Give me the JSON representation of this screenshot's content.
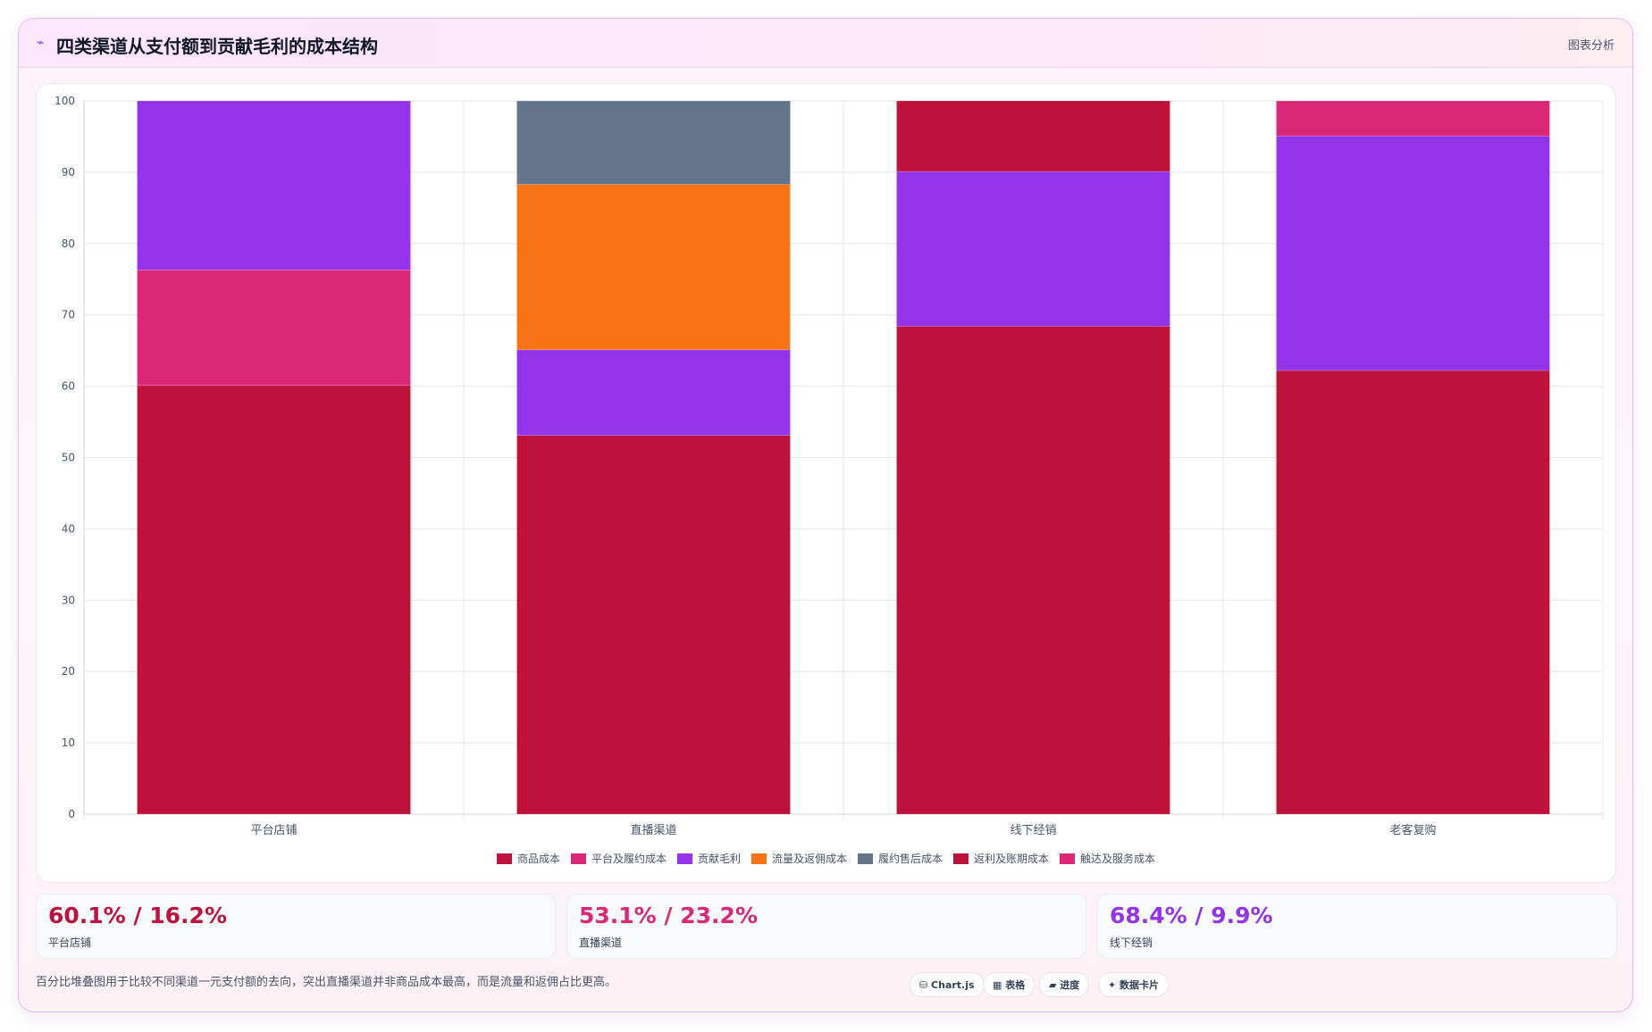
{
  "header": {
    "icon": "trend-icon",
    "title": "四类渠道从支付额到贡献毛利的成本结构",
    "tag": "图表分析"
  },
  "chart_data": {
    "type": "bar",
    "stacked": true,
    "categories": [
      "平台店铺",
      "直播渠道",
      "线下经销",
      "老客复购"
    ],
    "ylim": [
      0,
      100
    ],
    "yticks": [
      0,
      10,
      20,
      30,
      40,
      50,
      60,
      70,
      80,
      90,
      100
    ],
    "grid": true,
    "legend_position": "bottom",
    "series": [
      {
        "name": "商品成本",
        "color": "#be123c",
        "values": [
          60.1,
          53.1,
          68.4,
          62.2
        ]
      },
      {
        "name": "平台及履约成本",
        "color": "#db2777",
        "values": [
          16.2,
          null,
          null,
          null
        ]
      },
      {
        "name": "贡献毛利",
        "color": "#9333ea",
        "values": [
          23.7,
          12.0,
          21.7,
          32.9
        ]
      },
      {
        "name": "流量及返佣成本",
        "color": "#f97316",
        "values": [
          null,
          23.2,
          null,
          null
        ]
      },
      {
        "name": "履约售后成本",
        "color": "#64748b",
        "values": [
          null,
          11.7,
          null,
          null
        ]
      },
      {
        "name": "返利及账期成本",
        "color": "#be123c",
        "values": [
          null,
          null,
          9.9,
          null
        ]
      },
      {
        "name": "触达及服务成本",
        "color": "#db2777",
        "values": [
          null,
          null,
          null,
          4.9
        ]
      }
    ]
  },
  "stats": [
    {
      "value": "60.1% / 16.2%",
      "label": "平台店铺",
      "color": "#be123c"
    },
    {
      "value": "53.1% / 23.2%",
      "label": "直播渠道",
      "color": "#db2777"
    },
    {
      "value": "68.4% / 9.9%",
      "label": "线下经销",
      "color": "#9333ea"
    }
  ],
  "footer": {
    "note": "百分比堆叠图用于比较不同渠道一元支付额的去向，突出直播渠道并非商品成本最高，而是流量和返佣占比更高。",
    "pills": [
      "⛁ Chart.js",
      "▦ 表格",
      "▰ 进度",
      "✦ 数据卡片"
    ]
  }
}
